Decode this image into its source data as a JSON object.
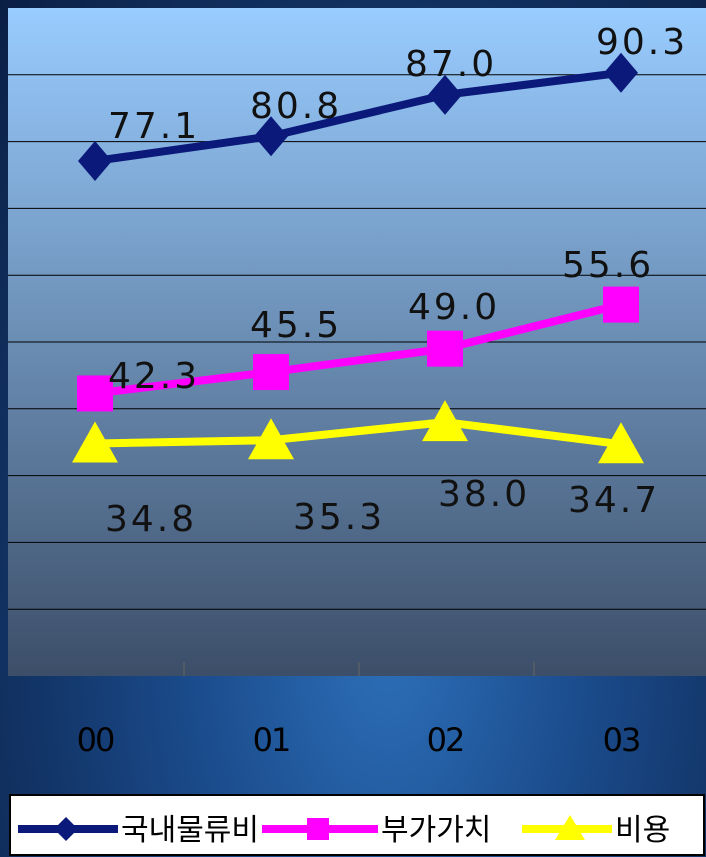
{
  "chart_data": {
    "type": "line",
    "categories": [
      "00",
      "01",
      "02",
      "03"
    ],
    "series": [
      {
        "name": "국내물류비",
        "values": [
          77.1,
          80.8,
          87.0,
          90.3
        ],
        "color": "#0b1a7a",
        "marker": "diamond"
      },
      {
        "name": "부가가치",
        "values": [
          42.3,
          45.5,
          49.0,
          55.6
        ],
        "color": "#ff00ff",
        "marker": "square"
      },
      {
        "name": "비용",
        "values": [
          34.8,
          35.3,
          38.0,
          34.7
        ],
        "color": "#ffff00",
        "marker": "triangle"
      }
    ],
    "data_labels": [
      [
        "77.1",
        "80.8",
        "87.0",
        "90.3"
      ],
      [
        "42.3",
        "45.5",
        "49.0",
        "55.6"
      ],
      [
        "34.8",
        "35.3",
        "38.0",
        "34.7"
      ]
    ],
    "title": "",
    "xlabel": "",
    "ylabel": "",
    "grid": true,
    "legend": "bottom"
  },
  "colors": {
    "plot_top": "#99ccff",
    "plot_bottom": "#3c4e68",
    "gridline": "#000000",
    "legend_bg": "#ffffff"
  }
}
